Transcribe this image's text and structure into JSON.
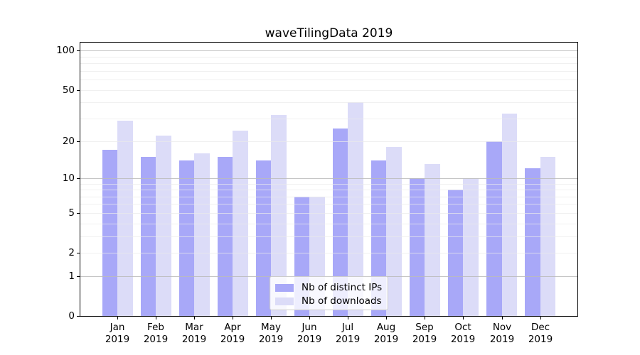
{
  "chart_data": {
    "type": "bar",
    "title": "waveTilingData 2019",
    "categories": [
      "Jan",
      "Feb",
      "Mar",
      "Apr",
      "May",
      "Jun",
      "Jul",
      "Aug",
      "Sep",
      "Oct",
      "Nov",
      "Dec"
    ],
    "year": "2019",
    "series": [
      {
        "name": "Nb of distinct IPs",
        "color": "#a8a8f8",
        "values": [
          17,
          15,
          14,
          15,
          14,
          7,
          25,
          14,
          10,
          8,
          20,
          12
        ]
      },
      {
        "name": "Nb of downloads",
        "color": "#dcdcf8",
        "values": [
          29,
          22,
          16,
          24,
          32,
          7,
          40,
          18,
          13,
          10,
          33,
          15
        ]
      }
    ],
    "xlabel": "",
    "ylabel": "",
    "yscale": "log1p",
    "yticks": [
      0,
      1,
      2,
      5,
      10,
      20,
      50,
      100
    ],
    "major_gridlines": [
      1,
      10,
      100
    ],
    "minor_gridlines": [
      2,
      3,
      4,
      5,
      6,
      7,
      8,
      9,
      20,
      30,
      40,
      50,
      60,
      70,
      80,
      90
    ],
    "ylim": [
      0,
      115
    ],
    "grid": true,
    "grid_above_bars": true,
    "legend_position": "lower center"
  },
  "colors": {
    "axis": "#000000",
    "text": "#000000",
    "legend_border": "#cccccc",
    "legend_background": "rgba(255,255,255,0.8)",
    "gridline_major": "#bbbbbb",
    "gridline_minor": "#eaeaea"
  }
}
